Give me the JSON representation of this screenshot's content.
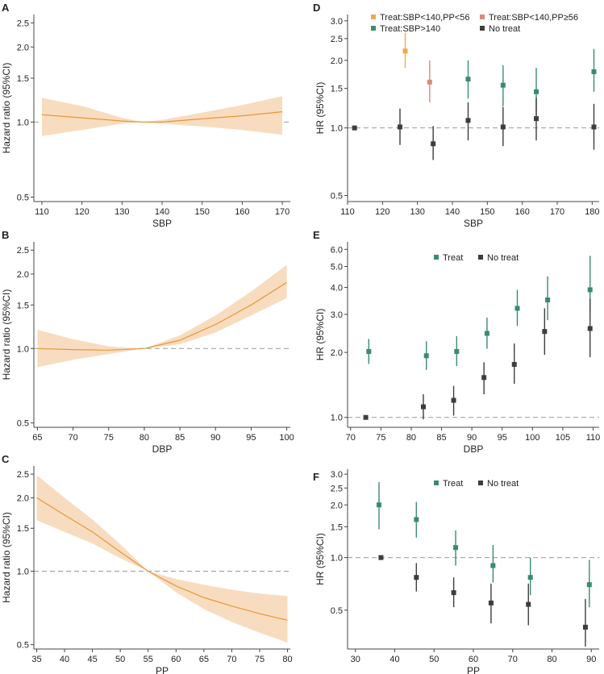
{
  "colors": {
    "band": "#f8dcbf",
    "curve": "#e8963a",
    "treat": "#3a8a72",
    "no_treat": "#3d3d3d",
    "treat_low": "#f0a94a",
    "treat_high_pp": "#d98a7a",
    "ref_line": "#999999",
    "axis": "#444444"
  },
  "chart_data": [
    {
      "panel": "A",
      "type": "line",
      "xlabel": "SBP",
      "ylabel": "Hazard ratio (95%CI)",
      "xlim": [
        108,
        172
      ],
      "ylim": [
        0.48,
        2.7
      ],
      "log_y": true,
      "xticks": [
        110,
        120,
        130,
        140,
        150,
        160,
        170
      ],
      "yticks": [
        0.5,
        1.0,
        1.5,
        2.0,
        2.5
      ],
      "ytick_labels": [
        "0.5",
        "1.0",
        "1.5",
        "2.0",
        "2.5"
      ],
      "reference": 1.0,
      "series": [
        {
          "name": "HR",
          "x": [
            110,
            120,
            130,
            135,
            140,
            150,
            160,
            170
          ],
          "y": [
            1.07,
            1.04,
            1.01,
            1.0,
            1.0,
            1.03,
            1.06,
            1.1
          ],
          "lower": [
            0.88,
            0.93,
            0.985,
            1.0,
            0.985,
            0.96,
            0.93,
            0.89
          ],
          "upper": [
            1.25,
            1.16,
            1.04,
            1.0,
            1.02,
            1.09,
            1.17,
            1.27
          ]
        }
      ]
    },
    {
      "panel": "B",
      "type": "line",
      "xlabel": "DBP",
      "ylabel": "Hazard ratio (95%CI)",
      "xlim": [
        64.5,
        100.5
      ],
      "ylim": [
        0.48,
        2.7
      ],
      "log_y": true,
      "xticks": [
        65,
        70,
        75,
        80,
        85,
        90,
        95,
        100
      ],
      "yticks": [
        0.5,
        1.0,
        1.5,
        2.0,
        2.5
      ],
      "ytick_labels": [
        "0.5",
        "1.0",
        "1.5",
        "2.0",
        "2.5"
      ],
      "reference": 1.0,
      "series": [
        {
          "name": "HR",
          "x": [
            65,
            70,
            75,
            80,
            85,
            90,
            95,
            100
          ],
          "y": [
            1.0,
            0.99,
            0.985,
            1.0,
            1.08,
            1.25,
            1.5,
            1.85
          ],
          "lower": [
            0.84,
            0.9,
            0.95,
            1.0,
            1.04,
            1.16,
            1.36,
            1.6
          ],
          "upper": [
            1.19,
            1.09,
            1.02,
            1.0,
            1.13,
            1.36,
            1.7,
            2.18
          ]
        }
      ]
    },
    {
      "panel": "C",
      "type": "line",
      "xlabel": "PP",
      "ylabel": "Hazard ratio (95%CI)",
      "xlim": [
        34.5,
        80.5
      ],
      "ylim": [
        0.48,
        2.7
      ],
      "log_y": true,
      "xticks": [
        35,
        40,
        45,
        50,
        55,
        60,
        65,
        70,
        75,
        80
      ],
      "yticks": [
        0.5,
        1.0,
        1.5,
        2.0,
        2.5
      ],
      "ytick_labels": [
        "0.5",
        "1.0",
        "1.5",
        "2.0",
        "2.5"
      ],
      "reference": 1.0,
      "series": [
        {
          "name": "HR",
          "x": [
            35,
            40,
            45,
            50,
            55,
            60,
            65,
            70,
            75,
            80
          ],
          "y": [
            2.0,
            1.7,
            1.45,
            1.2,
            1.0,
            0.87,
            0.78,
            0.72,
            0.67,
            0.63
          ],
          "lower": [
            1.62,
            1.45,
            1.3,
            1.13,
            1.0,
            0.82,
            0.7,
            0.62,
            0.56,
            0.51
          ],
          "upper": [
            2.48,
            2.0,
            1.63,
            1.29,
            1.0,
            0.93,
            0.88,
            0.84,
            0.81,
            0.79
          ]
        }
      ]
    },
    {
      "panel": "D",
      "type": "scatter",
      "xlabel": "SBP",
      "ylabel": "HR (95%CI)",
      "xlim": [
        110,
        182
      ],
      "ylim": [
        0.47,
        3.2
      ],
      "log_y": true,
      "xticks": [
        110,
        120,
        130,
        140,
        150,
        160,
        170,
        180
      ],
      "yticks": [
        0.5,
        1.0,
        1.5,
        2.0,
        2.5,
        3.0
      ],
      "ytick_labels": [
        "0.5",
        "1.0",
        "1.5",
        "2.0",
        "2.5",
        "3.0"
      ],
      "reference": 1.0,
      "series": [
        {
          "name": "Treat:SBP<140,PP<56",
          "color_key": "treat_low",
          "x": [
            126.5
          ],
          "y": [
            2.2
          ],
          "lower": [
            1.85
          ],
          "upper": [
            2.65
          ]
        },
        {
          "name": "Treat:SBP<140,PP≥56",
          "color_key": "treat_high_pp",
          "x": [
            133.5
          ],
          "y": [
            1.6
          ],
          "lower": [
            1.3
          ],
          "upper": [
            2.0
          ]
        },
        {
          "name": "Treat:SBP>140",
          "color_key": "treat",
          "x": [
            144.5,
            154.5,
            164
          ],
          "y": [
            1.65,
            1.55,
            1.45
          ],
          "lower": [
            1.35,
            1.25,
            1.15
          ],
          "upper": [
            2.0,
            1.9,
            1.85
          ]
        },
        {
          "name": "Treat:SBP>140",
          "color_key": "treat",
          "legend": false,
          "x": [
            180.5
          ],
          "y": [
            1.78
          ],
          "lower": [
            1.45
          ],
          "upper": [
            2.25
          ]
        },
        {
          "name": "No treat",
          "color_key": "no_treat",
          "x": [
            112,
            125,
            134.5,
            144.5,
            154.5,
            164,
            180.5
          ],
          "y": [
            1.0,
            1.01,
            0.85,
            1.08,
            1.01,
            1.1,
            1.01
          ],
          "lower": [
            1.0,
            0.84,
            0.72,
            0.88,
            0.83,
            0.88,
            0.8
          ],
          "upper": [
            1.0,
            1.22,
            1.02,
            1.3,
            1.24,
            1.36,
            1.28
          ]
        }
      ],
      "legend": [
        {
          "label": "Treat:SBP<140,PP<56",
          "color_key": "treat_low"
        },
        {
          "label": "Treat:SBP<140,PP≥56",
          "color_key": "treat_high_pp"
        },
        {
          "label": "Treat:SBP>140",
          "color_key": "treat"
        },
        {
          "label": "No treat",
          "color_key": "no_treat"
        }
      ]
    },
    {
      "panel": "E",
      "type": "scatter",
      "xlabel": "DBP",
      "ylabel": "HR (95%CI)",
      "xlim": [
        69.5,
        111
      ],
      "ylim": [
        0.9,
        6.5
      ],
      "log_y": true,
      "xticks": [
        70,
        75,
        80,
        85,
        90,
        95,
        100,
        105,
        110
      ],
      "yticks": [
        1.0,
        2.0,
        3.0,
        4.0,
        5.0,
        6.0
      ],
      "ytick_labels": [
        "1.0",
        "2.0",
        "3.0",
        "4.0",
        "5.0",
        "6.0"
      ],
      "reference": 1.0,
      "series": [
        {
          "name": "Treat",
          "color_key": "treat",
          "x": [
            73,
            82.5,
            87.5,
            92.5,
            97.5,
            102.5,
            109.5
          ],
          "y": [
            2.02,
            1.93,
            2.02,
            2.45,
            3.2,
            3.5,
            3.9
          ],
          "lower": [
            1.77,
            1.66,
            1.73,
            2.08,
            2.65,
            2.82,
            3.1
          ],
          "upper": [
            2.31,
            2.25,
            2.38,
            2.9,
            3.9,
            4.5,
            5.6
          ]
        },
        {
          "name": "No treat",
          "color_key": "no_treat",
          "x": [
            72.5,
            82,
            87,
            92,
            97,
            102,
            109.5
          ],
          "y": [
            1.0,
            1.12,
            1.2,
            1.53,
            1.76,
            2.5,
            2.58
          ],
          "lower": [
            1.0,
            0.98,
            1.02,
            1.28,
            1.43,
            1.95,
            1.9
          ],
          "upper": [
            1.0,
            1.28,
            1.4,
            1.8,
            2.2,
            3.2,
            3.55
          ]
        }
      ],
      "legend": [
        {
          "label": "Treat",
          "color_key": "treat"
        },
        {
          "label": "No treat",
          "color_key": "no_treat"
        }
      ]
    },
    {
      "panel": "F",
      "type": "scatter",
      "xlabel": "PP",
      "ylabel": "HR (95%CI)",
      "xlim": [
        28,
        92
      ],
      "ylim": [
        0.3,
        3.2
      ],
      "log_y": true,
      "xticks": [
        30,
        40,
        50,
        60,
        70,
        80,
        90
      ],
      "yticks": [
        0.5,
        1.0,
        1.5,
        2.0,
        2.5,
        3.0
      ],
      "ytick_labels": [
        "0.5",
        "1.0",
        "1.5",
        "2.0",
        "2.5",
        "3.0"
      ],
      "reference": 1.0,
      "series": [
        {
          "name": "Treat",
          "color_key": "treat",
          "x": [
            36,
            45.5,
            55.5,
            65,
            74.5,
            89.5
          ],
          "y": [
            2.0,
            1.65,
            1.14,
            0.9,
            0.77,
            0.7
          ],
          "lower": [
            1.45,
            1.3,
            0.9,
            0.72,
            0.61,
            0.52
          ],
          "upper": [
            2.7,
            2.08,
            1.43,
            1.18,
            1.0,
            0.97
          ]
        },
        {
          "name": "No treat",
          "color_key": "no_treat",
          "x": [
            36.5,
            45.5,
            55,
            64.5,
            74,
            88.5
          ],
          "y": [
            1.0,
            0.77,
            0.63,
            0.55,
            0.54,
            0.4
          ],
          "lower": [
            1.0,
            0.64,
            0.52,
            0.42,
            0.41,
            0.31
          ],
          "upper": [
            1.0,
            0.93,
            0.77,
            0.71,
            0.71,
            0.58
          ]
        }
      ],
      "legend": [
        {
          "label": "Treat",
          "color_key": "treat"
        },
        {
          "label": "No treat",
          "color_key": "no_treat"
        }
      ]
    }
  ]
}
